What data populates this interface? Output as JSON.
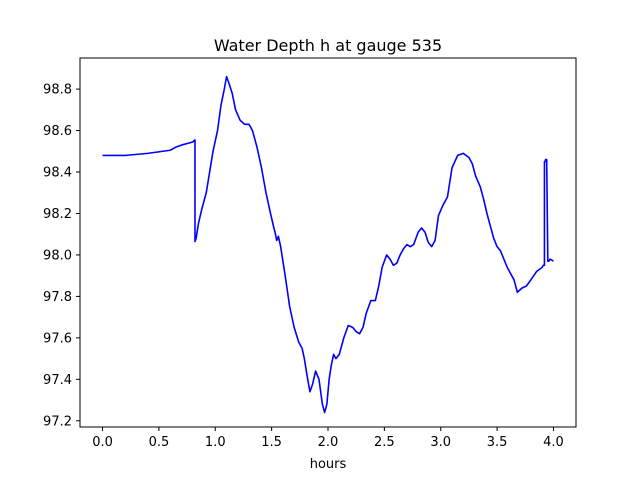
{
  "chart_data": {
    "type": "line",
    "title": "Water Depth h at gauge 535",
    "xlabel": "hours",
    "ylabel": "",
    "xlim": [
      -0.2,
      4.2
    ],
    "ylim": [
      97.17,
      98.95
    ],
    "grid": false,
    "x_ticks": [
      0.0,
      0.5,
      1.0,
      1.5,
      2.0,
      2.5,
      3.0,
      3.5,
      4.0
    ],
    "x_tick_labels": [
      "0.0",
      "0.5",
      "1.0",
      "1.5",
      "2.0",
      "2.5",
      "3.0",
      "3.5",
      "4.0"
    ],
    "y_ticks": [
      97.2,
      97.4,
      97.6,
      97.8,
      98.0,
      98.2,
      98.4,
      98.6,
      98.8
    ],
    "y_tick_labels": [
      "97.2",
      "97.4",
      "97.6",
      "97.8",
      "98.0",
      "98.2",
      "98.4",
      "98.6",
      "98.8"
    ],
    "series": [
      {
        "color": "#0000ff",
        "x": [
          0.0,
          0.2,
          0.4,
          0.6,
          0.65,
          0.7,
          0.8,
          0.82,
          0.82,
          0.83,
          0.85,
          0.88,
          0.92,
          0.95,
          0.98,
          1.02,
          1.05,
          1.08,
          1.1,
          1.12,
          1.15,
          1.18,
          1.22,
          1.26,
          1.3,
          1.33,
          1.37,
          1.41,
          1.45,
          1.49,
          1.52,
          1.53,
          1.545,
          1.56,
          1.58,
          1.62,
          1.66,
          1.7,
          1.74,
          1.77,
          1.79,
          1.82,
          1.84,
          1.865,
          1.89,
          1.92,
          1.95,
          1.97,
          1.99,
          2.01,
          2.03,
          2.05,
          2.07,
          2.1,
          2.14,
          2.18,
          2.22,
          2.25,
          2.28,
          2.31,
          2.34,
          2.38,
          2.42,
          2.45,
          2.48,
          2.52,
          2.55,
          2.58,
          2.61,
          2.64,
          2.67,
          2.7,
          2.73,
          2.76,
          2.8,
          2.83,
          2.86,
          2.89,
          2.92,
          2.95,
          2.98,
          3.02,
          3.06,
          3.1,
          3.15,
          3.2,
          3.25,
          3.28,
          3.31,
          3.35,
          3.38,
          3.41,
          3.44,
          3.47,
          3.5,
          3.53,
          3.56,
          3.59,
          3.62,
          3.65,
          3.68,
          3.72,
          3.76,
          3.8,
          3.85,
          3.9,
          3.91,
          3.92,
          3.92,
          3.925,
          3.93,
          3.94,
          3.95,
          3.95,
          3.96,
          3.97,
          4.0
        ],
        "y": [
          98.48,
          98.48,
          98.49,
          98.505,
          98.52,
          98.53,
          98.545,
          98.555,
          98.065,
          98.08,
          98.15,
          98.22,
          98.3,
          98.4,
          98.5,
          98.6,
          98.72,
          98.8,
          98.86,
          98.83,
          98.78,
          98.7,
          98.65,
          98.63,
          98.63,
          98.6,
          98.52,
          98.42,
          98.3,
          98.2,
          98.13,
          98.11,
          98.07,
          98.09,
          98.04,
          97.9,
          97.75,
          97.65,
          97.58,
          97.55,
          97.5,
          97.4,
          97.34,
          97.38,
          97.44,
          97.4,
          97.28,
          97.24,
          97.28,
          97.4,
          97.47,
          97.52,
          97.5,
          97.52,
          97.6,
          97.66,
          97.65,
          97.63,
          97.62,
          97.65,
          97.72,
          97.78,
          97.78,
          97.85,
          97.94,
          98.0,
          97.98,
          97.95,
          97.96,
          98.0,
          98.03,
          98.05,
          98.04,
          98.05,
          98.11,
          98.13,
          98.11,
          98.06,
          98.04,
          98.07,
          98.19,
          98.24,
          98.28,
          98.42,
          98.48,
          98.49,
          98.47,
          98.44,
          98.38,
          98.33,
          98.27,
          98.2,
          98.14,
          98.08,
          98.04,
          98.02,
          97.98,
          97.94,
          97.91,
          97.88,
          97.82,
          97.84,
          97.85,
          97.88,
          97.92,
          97.94,
          97.95,
          97.95,
          98.45,
          98.45,
          98.46,
          98.46,
          97.97,
          97.97,
          97.97,
          97.98,
          97.97
        ]
      }
    ]
  }
}
